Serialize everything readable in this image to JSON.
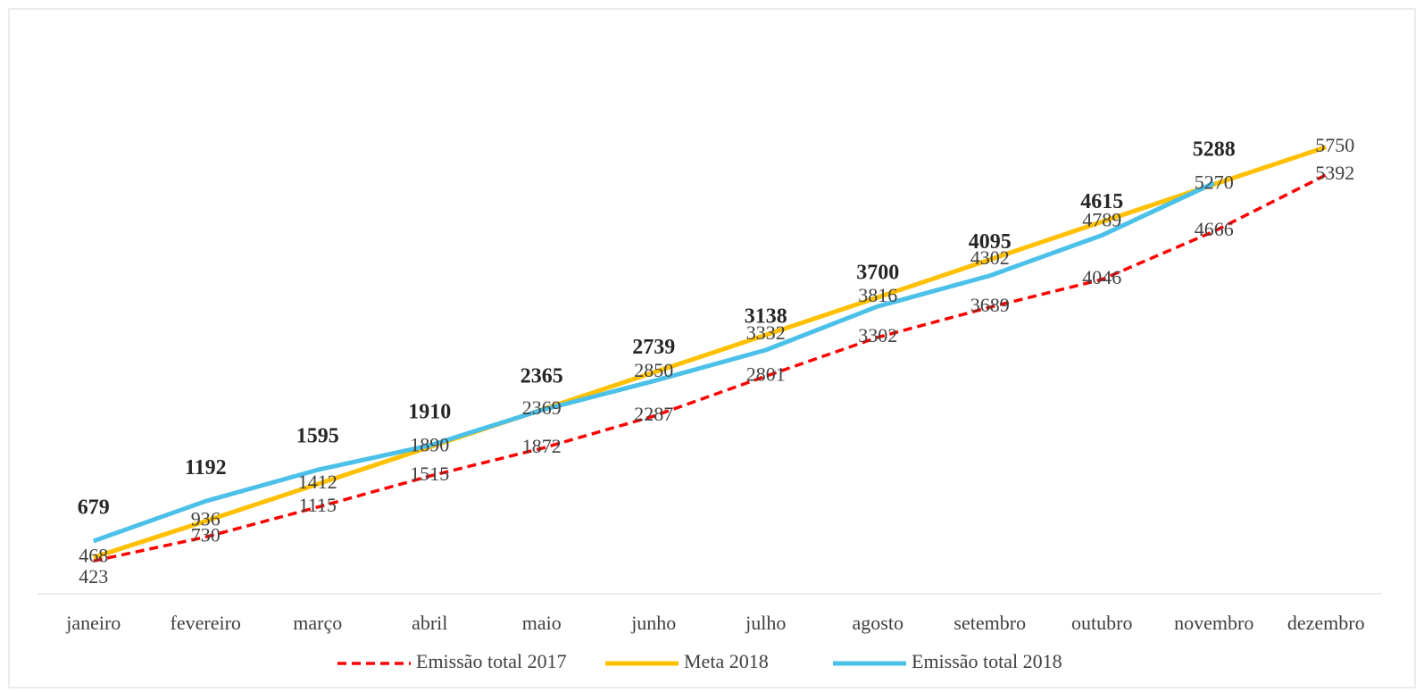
{
  "chart_data": {
    "type": "line",
    "categories": [
      "janeiro",
      "fevereiro",
      "março",
      "abril",
      "maio",
      "junho",
      "julho",
      "agosto",
      "setembro",
      "outubro",
      "novembro",
      "dezembro"
    ],
    "series": [
      {
        "name": "Emissão total 2017",
        "color": "#ff0000",
        "dash": true,
        "values": [
          423,
          730,
          1115,
          1515,
          1872,
          2287,
          2801,
          3302,
          3689,
          4046,
          4666,
          5392
        ]
      },
      {
        "name": "Meta 2018",
        "color": "#ffc000",
        "values": [
          468,
          936,
          1412,
          1890,
          2369,
          2850,
          3332,
          3816,
          4302,
          4789,
          5270,
          5750
        ]
      },
      {
        "name": "Emissão total 2018",
        "color": "#4bc0e8",
        "bold_labels": true,
        "values": [
          679,
          1192,
          1595,
          1910,
          2365,
          2739,
          3138,
          3700,
          4095,
          4615,
          5288,
          null
        ]
      }
    ],
    "ylim": [
      0,
      7000
    ],
    "legend": "bottom"
  }
}
